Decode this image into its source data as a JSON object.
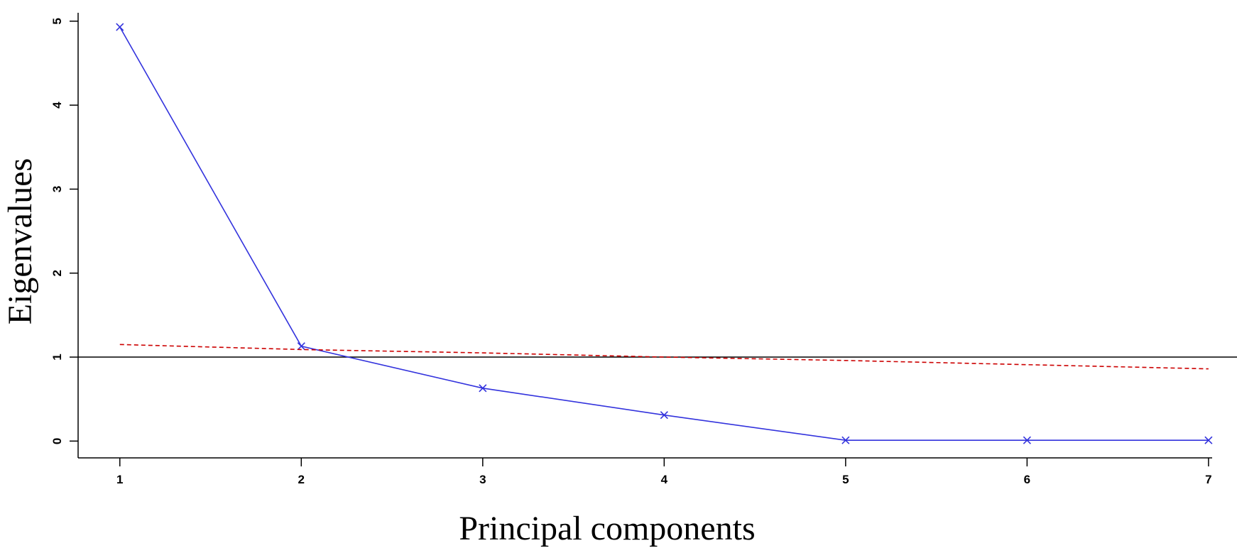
{
  "chart_data": {
    "type": "line",
    "xlabel": "Principal components",
    "ylabel": "Eigenvalues",
    "x": [
      1,
      2,
      3,
      4,
      5,
      6,
      7
    ],
    "xlim": [
      0.77,
      7.02
    ],
    "ylim": [
      -0.2,
      5.1
    ],
    "x_ticks": [
      1,
      2,
      3,
      4,
      5,
      6,
      7
    ],
    "y_ticks": [
      0,
      1,
      2,
      3,
      4,
      5
    ],
    "grid": false,
    "reference_line": {
      "y": 1,
      "color": "#000000"
    },
    "series": [
      {
        "values": [
          4.93,
          1.13,
          0.63,
          0.31,
          0.01,
          0.01,
          0.01
        ],
        "color": "#3333dd",
        "style": "solid",
        "marker": "x"
      },
      {
        "values": [
          1.15,
          1.09,
          1.05,
          1.0,
          0.96,
          0.91,
          0.86
        ],
        "color": "#cc0000",
        "style": "dashed",
        "marker": "none"
      }
    ]
  }
}
